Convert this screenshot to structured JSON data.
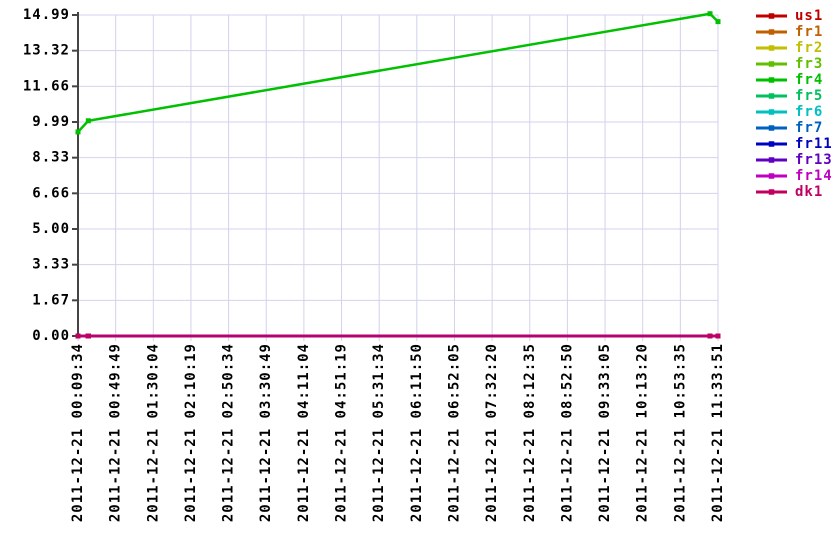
{
  "chart_data": {
    "type": "line",
    "grid": true,
    "legend_position": "right",
    "background": "#ffffff",
    "axis_color": "#444444",
    "grid_color": "#d2d2ee",
    "text_color": "#000000",
    "ylim": [
      0,
      14.99
    ],
    "y_tick_labels": [
      "0.00",
      "1.67",
      "3.33",
      "5.00",
      "6.66",
      "8.33",
      "9.99",
      "11.66",
      "13.32",
      "14.99"
    ],
    "x_tick_labels": [
      "2011-12-21 00:09:34",
      "2011-12-21 00:49:49",
      "2011-12-21 01:30:04",
      "2011-12-21 02:10:19",
      "2011-12-21 02:50:34",
      "2011-12-21 03:30:49",
      "2011-12-21 04:11:04",
      "2011-12-21 04:51:19",
      "2011-12-21 05:31:34",
      "2011-12-21 06:11:50",
      "2011-12-21 06:52:05",
      "2011-12-21 07:32:20",
      "2011-12-21 08:12:35",
      "2011-12-21 08:52:50",
      "2011-12-21 09:33:05",
      "2011-12-21 10:13:20",
      "2011-12-21 10:53:35",
      "2011-12-21 11:33:51"
    ],
    "sample_times": [
      "2011-12-21 00:09:34",
      "2011-12-21 00:20:35",
      "2011-12-21 11:25:18",
      "2011-12-21 11:33:51"
    ],
    "series": [
      {
        "name": "us1",
        "color": "#c00000",
        "values": [
          0,
          0,
          0,
          0
        ]
      },
      {
        "name": "fr1",
        "color": "#c06000",
        "values": [
          0,
          0,
          0,
          0
        ]
      },
      {
        "name": "fr2",
        "color": "#c0c000",
        "values": [
          0,
          0,
          0,
          0
        ]
      },
      {
        "name": "fr3",
        "color": "#60c000",
        "values": [
          0,
          0,
          0,
          0
        ]
      },
      {
        "name": "fr4",
        "color": "#00c000",
        "values": [
          9.53,
          10.05,
          15.05,
          14.68
        ]
      },
      {
        "name": "fr5",
        "color": "#00c060",
        "values": [
          0,
          0,
          0,
          0
        ]
      },
      {
        "name": "fr6",
        "color": "#00c0c0",
        "values": [
          0,
          0,
          0,
          0
        ]
      },
      {
        "name": "fr7",
        "color": "#0060c0",
        "values": [
          0,
          0,
          0,
          0
        ]
      },
      {
        "name": "fr11",
        "color": "#0000c0",
        "values": [
          0,
          0,
          0,
          0
        ]
      },
      {
        "name": "fr13",
        "color": "#6000c0",
        "values": [
          0,
          0,
          0,
          0
        ]
      },
      {
        "name": "fr14",
        "color": "#c000c0",
        "values": [
          0,
          0,
          0,
          0
        ]
      },
      {
        "name": "dk1",
        "color": "#c00060",
        "values": [
          0,
          0,
          0,
          0
        ]
      }
    ]
  }
}
